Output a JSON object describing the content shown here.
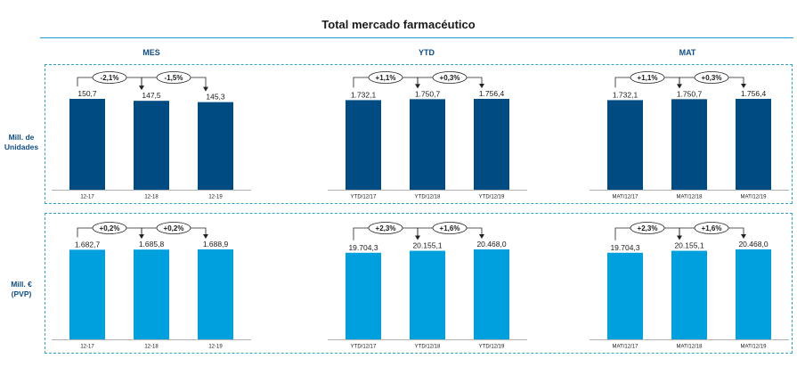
{
  "title": "Total mercado farmacéutico",
  "colors": {
    "units": "#004b82",
    "value": "#00a0df",
    "frame": "#30a3c9",
    "rule": "#1d9ad6",
    "text": "#1a1a1a"
  },
  "column_headers": [
    "MES",
    "YTD",
    "MAT"
  ],
  "row_labels": [
    {
      "line1": "Mill. de",
      "line2": "Unidades"
    },
    {
      "line1": "Mill. €",
      "line2": "(PVP)"
    }
  ],
  "chart_data": [
    {
      "type": "bar",
      "row": 0,
      "col": 0,
      "categories": [
        "12-17",
        "12-18",
        "12-19"
      ],
      "values": [
        150.7,
        147.5,
        145.3
      ],
      "labels": [
        "150,7",
        "147,5",
        "145,3"
      ],
      "changes": [
        "-2,1%",
        "-1,5%"
      ]
    },
    {
      "type": "bar",
      "row": 0,
      "col": 1,
      "categories": [
        "YTD/12/17",
        "YTD/12/18",
        "YTD/12/19"
      ],
      "values": [
        1732.1,
        1750.7,
        1756.4
      ],
      "labels": [
        "1.732,1",
        "1.750,7",
        "1.756,4"
      ],
      "changes": [
        "+1,1%",
        "+0,3%"
      ]
    },
    {
      "type": "bar",
      "row": 0,
      "col": 2,
      "categories": [
        "MAT/12/17",
        "MAT/12/18",
        "MAT/12/19"
      ],
      "values": [
        1732.1,
        1750.7,
        1756.4
      ],
      "labels": [
        "1.732,1",
        "1.750,7",
        "1.756,4"
      ],
      "changes": [
        "+1,1%",
        "+0,3%"
      ]
    },
    {
      "type": "bar",
      "row": 1,
      "col": 0,
      "categories": [
        "12-17",
        "12-18",
        "12-19"
      ],
      "values": [
        1682.7,
        1685.8,
        1688.9
      ],
      "labels": [
        "1.682,7",
        "1.685,8",
        "1.688,9"
      ],
      "changes": [
        "+0,2%",
        "+0,2%"
      ]
    },
    {
      "type": "bar",
      "row": 1,
      "col": 1,
      "categories": [
        "YTD/12/17",
        "YTD/12/18",
        "YTD/12/19"
      ],
      "values": [
        19704.3,
        20155.1,
        20468.0
      ],
      "labels": [
        "19.704,3",
        "20.155,1",
        "20.468,0"
      ],
      "changes": [
        "+2,3%",
        "+1,6%"
      ]
    },
    {
      "type": "bar",
      "row": 1,
      "col": 2,
      "categories": [
        "MAT/12/17",
        "MAT/12/18",
        "MAT/12/19"
      ],
      "values": [
        19704.3,
        20155.1,
        20468.0
      ],
      "labels": [
        "19.704,3",
        "20.155,1",
        "20.468,0"
      ],
      "changes": [
        "+2,3%",
        "+1,6%"
      ]
    }
  ]
}
